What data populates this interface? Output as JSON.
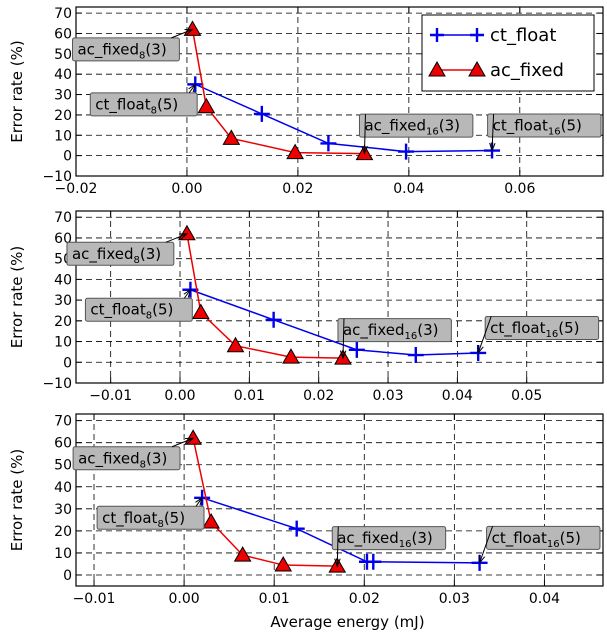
{
  "chart_data": [
    {
      "type": "line",
      "xlabel": "",
      "ylabel": "Error rate (%)",
      "xlim": [
        -0.02,
        0.075
      ],
      "ylim": [
        -10,
        73
      ],
      "xticks": [
        -0.02,
        0.0,
        0.02,
        0.04,
        0.06
      ],
      "xtick_labels": [
        "−0.02",
        "0.00",
        "0.02",
        "0.04",
        "0.06"
      ],
      "yticks": [
        -10,
        0,
        10,
        20,
        30,
        40,
        50,
        60,
        70
      ],
      "ytick_labels": [
        "−10",
        "0",
        "10",
        "20",
        "30",
        "40",
        "50",
        "60",
        "70"
      ],
      "grid": true,
      "legend_position": "top-right",
      "legend": [
        "ct_float",
        "ac_fixed"
      ],
      "series": [
        {
          "name": "ct_float",
          "color": "#0000ee",
          "marker": "plus",
          "x": [
            0.0015,
            0.0135,
            0.0255,
            0.0395,
            0.055
          ],
          "y": [
            35,
            20.5,
            6,
            2,
            2.5
          ]
        },
        {
          "name": "ac_fixed",
          "color": "#ee0000",
          "marker": "triangle",
          "x": [
            0.001,
            0.0035,
            0.008,
            0.0195,
            0.032
          ],
          "y": [
            62,
            24,
            8.5,
            1.5,
            1
          ]
        }
      ],
      "annotations": [
        {
          "text": "ac_fixed",
          "sub": "8",
          "arg": "(3)",
          "x": 0.001,
          "y": 62
        },
        {
          "text": "ct_float",
          "sub": "8",
          "arg": "(5)",
          "x": 0.0015,
          "y": 35
        },
        {
          "text": "ac_fixed",
          "sub": "16",
          "arg": "(3)",
          "x": 0.032,
          "y": 1
        },
        {
          "text": "ct_float",
          "sub": "16",
          "arg": "(5)",
          "x": 0.055,
          "y": 2.5
        }
      ]
    },
    {
      "type": "line",
      "xlabel": "",
      "ylabel": "Error rate (%)",
      "xlim": [
        -0.015,
        0.061
      ],
      "ylim": [
        -10,
        73
      ],
      "xticks": [
        -0.01,
        0.0,
        0.01,
        0.02,
        0.03,
        0.04,
        0.05
      ],
      "xtick_labels": [
        "−0.01",
        "0.00",
        "0.01",
        "0.02",
        "0.03",
        "0.04",
        "0.05"
      ],
      "yticks": [
        -10,
        0,
        10,
        20,
        30,
        40,
        50,
        60,
        70
      ],
      "ytick_labels": [
        "−10",
        "0",
        "10",
        "20",
        "30",
        "40",
        "50",
        "60",
        "70"
      ],
      "grid": true,
      "series": [
        {
          "name": "ct_float",
          "color": "#0000ee",
          "marker": "plus",
          "x": [
            0.0015,
            0.0135,
            0.0255,
            0.034,
            0.043
          ],
          "y": [
            35,
            20.5,
            6,
            3.5,
            4.5
          ]
        },
        {
          "name": "ac_fixed",
          "color": "#ee0000",
          "marker": "triangle",
          "x": [
            0.001,
            0.003,
            0.008,
            0.016,
            0.0235
          ],
          "y": [
            62,
            24,
            8,
            2.5,
            2
          ]
        }
      ],
      "annotations": [
        {
          "text": "ac_fixed",
          "sub": "8",
          "arg": "(3)",
          "x": 0.001,
          "y": 62
        },
        {
          "text": "ct_float",
          "sub": "8",
          "arg": "(5)",
          "x": 0.0015,
          "y": 35
        },
        {
          "text": "ac_fixed",
          "sub": "16",
          "arg": "(3)",
          "x": 0.0235,
          "y": 2
        },
        {
          "text": "ct_float",
          "sub": "16",
          "arg": "(5)",
          "x": 0.043,
          "y": 4.5
        }
      ]
    },
    {
      "type": "line",
      "xlabel": "Average energy (mJ)",
      "ylabel": "Error rate (%)",
      "xlim": [
        -0.012,
        0.0465
      ],
      "ylim": [
        -5,
        73
      ],
      "xticks": [
        -0.01,
        0.0,
        0.01,
        0.02,
        0.03,
        0.04
      ],
      "xtick_labels": [
        "−0.01",
        "0.00",
        "0.01",
        "0.02",
        "0.03",
        "0.04"
      ],
      "yticks": [
        0,
        10,
        20,
        30,
        40,
        50,
        60,
        70
      ],
      "ytick_labels": [
        "0",
        "10",
        "20",
        "30",
        "40",
        "50",
        "60",
        "70"
      ],
      "grid": true,
      "series": [
        {
          "name": "ct_float",
          "color": "#0000ee",
          "marker": "plus",
          "x": [
            0.002,
            0.0125,
            0.0203,
            0.021,
            0.0328
          ],
          "y": [
            35,
            21,
            6,
            6,
            5.5
          ]
        },
        {
          "name": "ac_fixed",
          "color": "#ee0000",
          "marker": "triangle",
          "x": [
            0.001,
            0.003,
            0.0065,
            0.011,
            0.017
          ],
          "y": [
            62,
            24,
            9,
            4.5,
            4
          ]
        }
      ],
      "annotations": [
        {
          "text": "ac_fixed",
          "sub": "8",
          "arg": "(3)",
          "x": 0.001,
          "y": 62
        },
        {
          "text": "ct_float",
          "sub": "8",
          "arg": "(5)",
          "x": 0.002,
          "y": 35
        },
        {
          "text": "ac_fixed",
          "sub": "16",
          "arg": "(3)",
          "x": 0.017,
          "y": 4
        },
        {
          "text": "ct_float",
          "sub": "16",
          "arg": "(5)",
          "x": 0.0328,
          "y": 5.5
        }
      ]
    }
  ]
}
